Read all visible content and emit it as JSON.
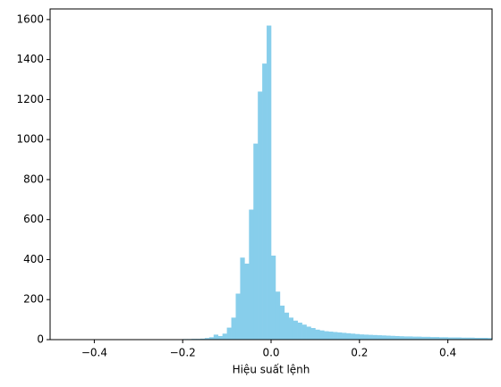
{
  "chart_data": {
    "type": "histogram",
    "xlabel": "Hiệu suất lệnh",
    "color": "#87ceeb",
    "bins": [
      -0.45,
      -0.44,
      -0.43,
      -0.42,
      -0.41,
      -0.4,
      -0.39,
      -0.38,
      -0.37,
      -0.36,
      -0.35,
      -0.34,
      -0.33,
      -0.32,
      -0.31,
      -0.3,
      -0.29,
      -0.28,
      -0.27,
      -0.26,
      -0.25,
      -0.24,
      -0.23,
      -0.22,
      -0.21,
      -0.2,
      -0.19,
      -0.18,
      -0.17,
      -0.16,
      -0.15,
      -0.14,
      -0.13,
      -0.12,
      -0.11,
      -0.1,
      -0.09,
      -0.08,
      -0.07,
      -0.06,
      -0.05,
      -0.04,
      -0.03,
      -0.02,
      -0.01,
      0,
      0.01,
      0.02,
      0.03,
      0.04,
      0.05,
      0.06,
      0.07,
      0.08,
      0.09,
      0.1,
      0.11,
      0.12,
      0.13,
      0.14,
      0.15,
      0.16,
      0.17,
      0.18,
      0.19,
      0.2,
      0.21,
      0.22,
      0.23,
      0.24,
      0.25,
      0.26,
      0.27,
      0.28,
      0.29,
      0.3,
      0.31,
      0.32,
      0.33,
      0.34,
      0.35,
      0.36,
      0.37,
      0.38,
      0.39,
      0.4,
      0.41,
      0.42,
      0.43,
      0.44,
      0.45,
      0.46,
      0.47,
      0.48,
      0.49,
      0.5
    ],
    "counts": [
      1,
      1,
      1,
      1,
      1,
      1,
      1,
      1,
      1,
      1,
      1,
      1,
      1,
      2,
      1,
      1,
      1,
      2,
      1,
      1,
      2,
      1,
      2,
      2,
      2,
      3,
      3,
      4,
      4,
      5,
      8,
      12,
      25,
      18,
      30,
      60,
      110,
      230,
      410,
      380,
      650,
      980,
      1240,
      1380,
      1570,
      420,
      240,
      170,
      135,
      110,
      95,
      85,
      75,
      65,
      58,
      50,
      46,
      42,
      40,
      38,
      36,
      34,
      32,
      30,
      28,
      26,
      25,
      24,
      23,
      22,
      21,
      20,
      19,
      18,
      17,
      16,
      16,
      15,
      15,
      14,
      14,
      13,
      13,
      12,
      12,
      11,
      11,
      11,
      10,
      10,
      10,
      9,
      9,
      9,
      8
    ],
    "xlim": [
      -0.5,
      0.5
    ],
    "ylim": [
      0,
      1653
    ],
    "xticks": [
      {
        "value": -0.4,
        "label": "−0.4"
      },
      {
        "value": -0.2,
        "label": "−0.2"
      },
      {
        "value": 0,
        "label": "0.0"
      },
      0.2,
      0.4
    ],
    "yticks": [
      0,
      200,
      400,
      600,
      800,
      1000,
      1200,
      1400,
      1600
    ]
  }
}
